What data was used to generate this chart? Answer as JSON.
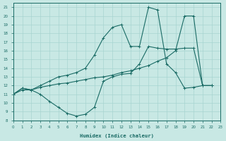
{
  "xlabel": "Humidex (Indice chaleur)",
  "background_color": "#c8e8e4",
  "grid_color": "#a8d4d0",
  "line_color": "#1a6b65",
  "xlim": [
    0,
    23
  ],
  "ylim": [
    8,
    21.5
  ],
  "xticks": [
    0,
    1,
    2,
    3,
    4,
    5,
    6,
    7,
    8,
    9,
    10,
    11,
    12,
    13,
    14,
    15,
    16,
    17,
    18,
    19,
    20,
    21,
    22,
    23
  ],
  "yticks": [
    8,
    9,
    10,
    11,
    12,
    13,
    14,
    15,
    16,
    17,
    18,
    19,
    20,
    21
  ],
  "line_dip_x": [
    0,
    1,
    2,
    3,
    4,
    5,
    6,
    7,
    8,
    9,
    10,
    11,
    12,
    13,
    14,
    15,
    16,
    17,
    18,
    19,
    20,
    21,
    22
  ],
  "line_dip_y": [
    11,
    11.7,
    11.5,
    11.0,
    10.2,
    9.5,
    8.8,
    8.5,
    8.7,
    9.5,
    12.5,
    13.0,
    13.3,
    13.4,
    14.5,
    16.5,
    16.3,
    16.2,
    16.2,
    16.3,
    16.3,
    12.0,
    12.0
  ],
  "line_diag_x": [
    0,
    1,
    2,
    3,
    4,
    5,
    6,
    7,
    8,
    9,
    10,
    11,
    12,
    13,
    14,
    15,
    16,
    17,
    18,
    19,
    20,
    21,
    22
  ],
  "line_diag_y": [
    11,
    11.5,
    11.5,
    11.8,
    12.0,
    12.2,
    12.3,
    12.5,
    12.7,
    12.9,
    13.0,
    13.2,
    13.5,
    13.7,
    14.0,
    14.3,
    14.8,
    15.2,
    16.0,
    20.0,
    20.0,
    12.0,
    12.0
  ],
  "line_peak_x": [
    0,
    1,
    2,
    3,
    4,
    5,
    6,
    7,
    8,
    9,
    10,
    11,
    12,
    13,
    14,
    15,
    16,
    17,
    18,
    19,
    20,
    21,
    22
  ],
  "line_peak_y": [
    11,
    11.7,
    11.5,
    12.0,
    12.5,
    13.0,
    13.2,
    13.5,
    14.0,
    15.5,
    17.5,
    18.7,
    19.0,
    16.5,
    16.5,
    21.0,
    20.7,
    14.5,
    13.5,
    11.7,
    11.8,
    12.0,
    12.0
  ]
}
